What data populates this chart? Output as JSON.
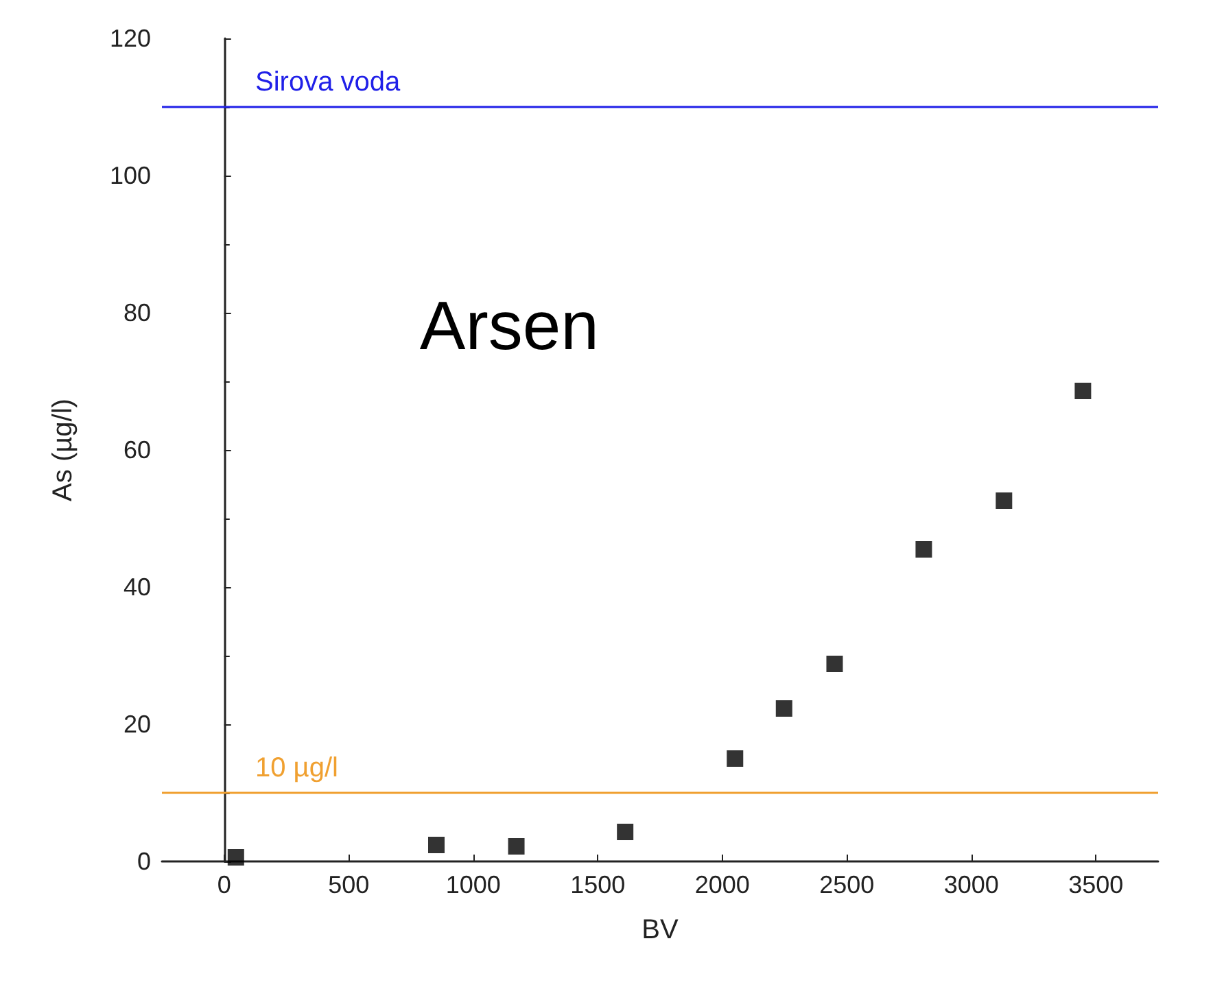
{
  "chart_data": {
    "type": "scatter",
    "xlabel": "BV",
    "ylabel": "As (µg/l)",
    "annotations": [
      "Arsen"
    ],
    "x": [
      47,
      852,
      1173,
      1610,
      2051,
      2248,
      2451,
      2809,
      3131,
      3448
    ],
    "series": [
      {
        "color": "#000000",
        "values": [
          0.6,
          2.4,
          2.2,
          4.3,
          15.0,
          22.3,
          28.8,
          45.5,
          52.6,
          68.6
        ]
      }
    ],
    "xlim": [
      -250,
      3750
    ],
    "xticks": [
      0,
      500,
      1000,
      1500,
      2000,
      2500,
      3000,
      3500
    ],
    "ylim": [
      0,
      120
    ],
    "yticks": [
      0,
      20,
      40,
      60,
      80,
      100,
      120
    ],
    "ref_lines": [
      {
        "axis": "y",
        "value": 110,
        "label": "Sirova voda",
        "color": "#2020e8"
      },
      {
        "axis": "y",
        "value": 10,
        "label": "10 µg/l",
        "color": "#f0a030"
      }
    ],
    "marker": "square"
  }
}
